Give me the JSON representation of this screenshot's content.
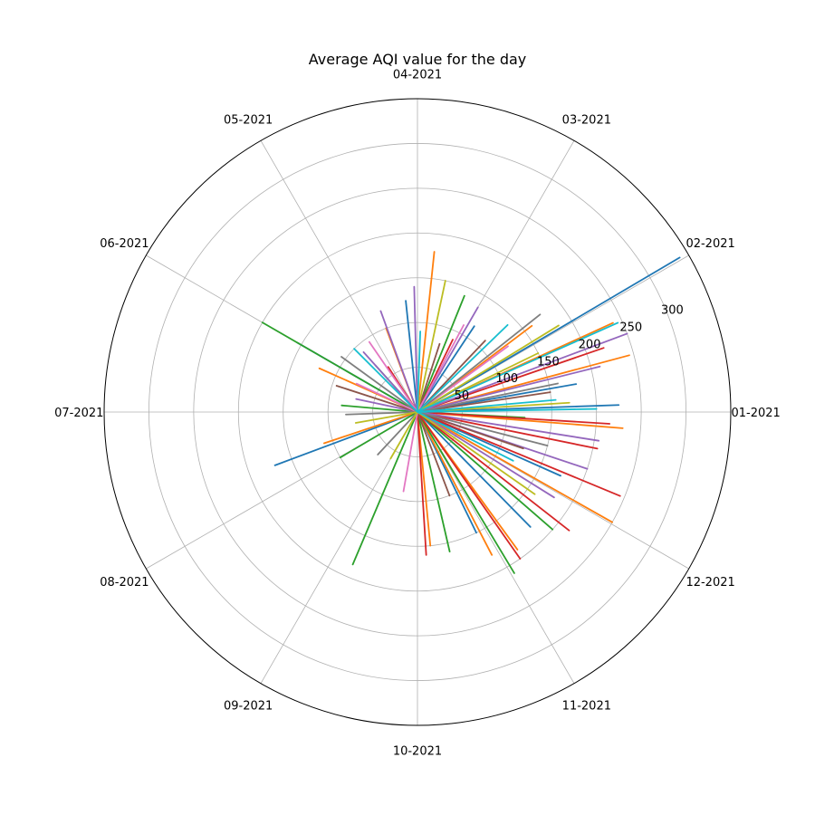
{
  "chart_data": {
    "type": "line",
    "projection": "polar",
    "title": "Average AQI value for the day",
    "angular_tick_labels": [
      "01-2021",
      "02-2021",
      "03-2021",
      "04-2021",
      "05-2021",
      "06-2021",
      "07-2021",
      "08-2021",
      "09-2021",
      "10-2021",
      "11-2021",
      "12-2021"
    ],
    "radial_tick_labels": [
      "50",
      "100",
      "150",
      "200",
      "250",
      "300"
    ],
    "radial_ticks": [
      50,
      100,
      150,
      200,
      250,
      300
    ],
    "rlim": [
      0,
      350
    ],
    "grid": true,
    "series_colors": [
      "#1f77b4",
      "#ff7f0e",
      "#2ca02c",
      "#d62728",
      "#9467bd",
      "#8c564b",
      "#e377c2",
      "#7f7f7f",
      "#bcbd22",
      "#17becf"
    ],
    "series": [
      {
        "values": [
          [
            0.0,
            0
          ],
          [
            30.5,
            340
          ],
          [
            32.0,
            0
          ],
          [
            200.5,
            170
          ],
          [
            202.0,
            0
          ],
          [
            10.0,
            180
          ],
          [
            11.2,
            0
          ],
          [
            150.0,
            155
          ],
          [
            151.0,
            0
          ],
          [
            -45.5,
            180
          ],
          [
            -46.5,
            0
          ],
          [
            96.0,
            125
          ],
          [
            97.0,
            0
          ],
          [
            -64.0,
            150
          ],
          [
            -65.0,
            0
          ],
          [
            56.5,
            115
          ],
          [
            57.5,
            0
          ],
          [
            2.0,
            225
          ],
          [
            3.0,
            0
          ],
          [
            -24.0,
            175
          ],
          [
            -25.0,
            0
          ]
        ]
      },
      {
        "values": [
          [
            0.0,
            0
          ],
          [
            24.5,
            240
          ],
          [
            25.5,
            0
          ],
          [
            84.0,
            180
          ],
          [
            85.5,
            0
          ],
          [
            156.0,
            120
          ],
          [
            157.0,
            0
          ],
          [
            -4.5,
            230
          ],
          [
            -5.5,
            0
          ],
          [
            -29.5,
            250
          ],
          [
            -30.5,
            0
          ],
          [
            -84.5,
            150
          ],
          [
            -85.5,
            0
          ],
          [
            -62.5,
            180
          ],
          [
            -63.5,
            0
          ],
          [
            198.5,
            110
          ],
          [
            199.5,
            0
          ],
          [
            37.0,
            160
          ],
          [
            38.0,
            0
          ],
          [
            15.0,
            245
          ],
          [
            16.0,
            0
          ],
          [
            -54.0,
            190
          ],
          [
            -55.0,
            0
          ],
          [
            110.5,
            100
          ],
          [
            111.5,
            0
          ]
        ]
      },
      {
        "values": [
          [
            0.0,
            0
          ],
          [
            150.0,
            200
          ],
          [
            151.2,
            0
          ],
          [
            210.5,
            100
          ],
          [
            212.0,
            0
          ],
          [
            -77.0,
            160
          ],
          [
            -78.0,
            0
          ],
          [
            -59.0,
            210
          ],
          [
            -60.0,
            0
          ],
          [
            -41.0,
            200
          ],
          [
            -42.0,
            0
          ],
          [
            -113.0,
            185
          ],
          [
            -114.0,
            0
          ],
          [
            68.0,
            140
          ],
          [
            69.0,
            0
          ],
          [
            175.0,
            85
          ],
          [
            176.0,
            0
          ],
          [
            -3.0,
            120
          ],
          [
            -4.0,
            0
          ],
          [
            132.0,
            70
          ],
          [
            133.0,
            0
          ]
        ]
      },
      {
        "values": [
          [
            0.0,
            0
          ],
          [
            -3.5,
            215
          ],
          [
            -4.8,
            0
          ],
          [
            -22.5,
            245
          ],
          [
            -24.0,
            0
          ],
          [
            -38.0,
            215
          ],
          [
            -39.0,
            0
          ],
          [
            -86.5,
            160
          ],
          [
            -87.5,
            0
          ],
          [
            -55.0,
            200
          ],
          [
            -56.0,
            0
          ],
          [
            -11.5,
            205
          ],
          [
            -12.5,
            0
          ],
          [
            64.0,
            90
          ],
          [
            65.0,
            0
          ],
          [
            123.0,
            60
          ],
          [
            124.0,
            0
          ],
          [
            19.0,
            220
          ],
          [
            20.0,
            0
          ]
        ]
      },
      {
        "values": [
          [
            0.0,
            0
          ],
          [
            20.5,
            250
          ],
          [
            21.8,
            0
          ],
          [
            91.5,
            140
          ],
          [
            93.0,
            0
          ],
          [
            110.0,
            120
          ],
          [
            111.0,
            0
          ],
          [
            -9.0,
            205
          ],
          [
            -10.0,
            0
          ],
          [
            -18.5,
            200
          ],
          [
            -19.5,
            0
          ],
          [
            14.0,
            210
          ],
          [
            15.0,
            0
          ],
          [
            132.0,
            90
          ],
          [
            133.0,
            0
          ],
          [
            60.0,
            135
          ],
          [
            61.0,
            0
          ],
          [
            -32.0,
            180
          ],
          [
            -33.0,
            0
          ],
          [
            168.0,
            70
          ],
          [
            169.0,
            0
          ]
        ]
      },
      {
        "values": [
          [
            0.0,
            0
          ],
          [
            46.5,
            110
          ],
          [
            47.5,
            0
          ],
          [
            8.5,
            150
          ],
          [
            9.5,
            0
          ],
          [
            -19.0,
            125
          ],
          [
            -20.0,
            0
          ],
          [
            162.0,
            95
          ],
          [
            163.0,
            0
          ],
          [
            72.0,
            80
          ],
          [
            73.0,
            0
          ],
          [
            -69.0,
            100
          ],
          [
            -70.0,
            0
          ]
        ]
      },
      {
        "values": [
          [
            0.0,
            0
          ],
          [
            124.5,
            95
          ],
          [
            125.5,
            0
          ],
          [
            62.0,
            110
          ],
          [
            63.0,
            0
          ],
          [
            36.0,
            125
          ],
          [
            37.0,
            0
          ],
          [
            155.0,
            75
          ],
          [
            156.0,
            0
          ],
          [
            -100.0,
            90
          ],
          [
            -101.0,
            0
          ]
        ]
      },
      {
        "values": [
          [
            0.0,
            0
          ],
          [
            38.5,
            175
          ],
          [
            39.5,
            0
          ],
          [
            11.5,
            160
          ],
          [
            12.5,
            0
          ],
          [
            144.0,
            105
          ],
          [
            145.0,
            0
          ],
          [
            -14.5,
            150
          ],
          [
            -15.5,
            0
          ],
          [
            182.0,
            80
          ],
          [
            183.0,
            0
          ],
          [
            -133.0,
            65
          ],
          [
            -134.0,
            0
          ]
        ]
      },
      {
        "values": [
          [
            0.0,
            0
          ],
          [
            31.5,
            185
          ],
          [
            32.5,
            0
          ],
          [
            3.5,
            170
          ],
          [
            4.5,
            0
          ],
          [
            -35.0,
            160
          ],
          [
            -36.0,
            0
          ],
          [
            78.0,
            150
          ],
          [
            79.0,
            0
          ],
          [
            190.0,
            70
          ],
          [
            191.0,
            0
          ],
          [
            -120.0,
            60
          ],
          [
            -121.0,
            0
          ],
          [
            26.0,
            150
          ],
          [
            27.0,
            0
          ]
        ]
      },
      {
        "values": [
          [
            0.0,
            0
          ],
          [
            24.0,
            245
          ],
          [
            25.2,
            0
          ],
          [
            1.0,
            200
          ],
          [
            2.0,
            0
          ],
          [
            44.0,
            140
          ],
          [
            45.0,
            0
          ],
          [
            135.0,
            100
          ],
          [
            136.0,
            0
          ],
          [
            -27.0,
            120
          ],
          [
            -28.0,
            0
          ],
          [
            5.0,
            155
          ],
          [
            6.0,
            0
          ],
          [
            88.0,
            90
          ],
          [
            89.0,
            0
          ]
        ]
      }
    ]
  }
}
